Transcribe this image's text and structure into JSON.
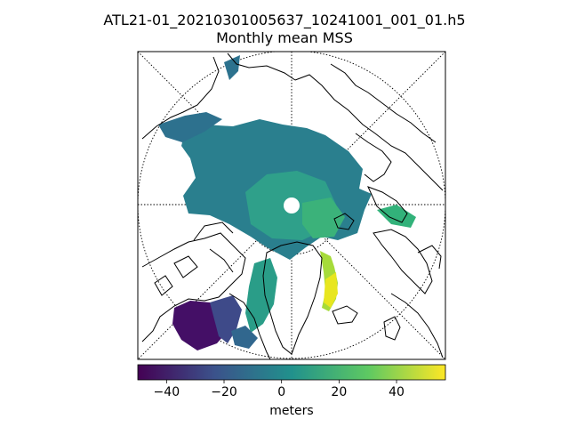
{
  "figure": {
    "title_line1": "ATL21-01_20210301005637_10241001_001_01.h5",
    "title_line2": "Monthly mean MSS"
  },
  "colorbar": {
    "label": "meters",
    "colormap": "viridis",
    "range": [
      -50,
      57
    ],
    "ticks": [
      {
        "value": -40,
        "label": "−40"
      },
      {
        "value": -20,
        "label": "−20"
      },
      {
        "value": 0,
        "label": "0"
      },
      {
        "value": 20,
        "label": "20"
      },
      {
        "value": 40,
        "label": "40"
      }
    ]
  },
  "map": {
    "projection": "north-polar-stereographic",
    "graticule": "dotted"
  },
  "colors": {
    "viridis": [
      "#440154",
      "#3b528b",
      "#21918c",
      "#5ec962",
      "#fde725"
    ]
  }
}
